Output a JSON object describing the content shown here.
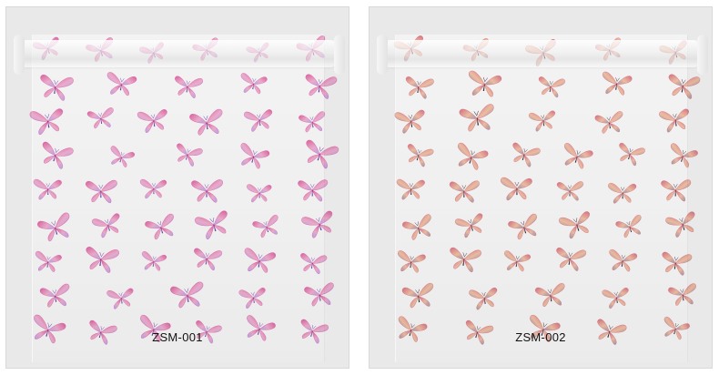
{
  "panels": [
    {
      "label": "ZSM-001",
      "palette": {
        "wing": "#f59cc8",
        "wing_dark": "#e0509a",
        "accent": "#9b6cf0",
        "body": "#6d3fb0"
      },
      "rows": [
        {
          "count": 6,
          "scales": [
            0.8,
            0.85,
            0.75,
            0.8,
            0.7,
            0.9
          ]
        },
        {
          "count": 5,
          "scales": [
            1.0,
            0.9,
            0.85,
            0.8,
            0.95
          ]
        },
        {
          "count": 6,
          "scales": [
            1.0,
            0.8,
            0.9,
            1.0,
            0.85,
            0.8
          ]
        },
        {
          "count": 5,
          "scales": [
            0.95,
            0.75,
            0.8,
            0.9,
            1.0
          ]
        },
        {
          "count": 6,
          "scales": [
            0.85,
            0.95,
            0.8,
            0.95,
            0.75,
            0.9
          ]
        },
        {
          "count": 6,
          "scales": [
            1.0,
            0.85,
            0.9,
            1.0,
            0.8,
            0.95
          ]
        },
        {
          "count": 6,
          "scales": [
            0.8,
            1.0,
            0.75,
            0.85,
            0.95,
            0.8
          ]
        },
        {
          "count": 5,
          "scales": [
            0.9,
            0.8,
            1.0,
            0.8,
            0.9
          ]
        },
        {
          "count": 6,
          "scales": [
            1.0,
            0.85,
            0.95,
            0.8,
            0.9,
            0.85
          ]
        }
      ]
    },
    {
      "label": "ZSM-002",
      "palette": {
        "wing": "#f7b48e",
        "wing_dark": "#d9627a",
        "accent": "#7a5a6a",
        "body": "#3b2a30"
      },
      "rows": [
        {
          "count": 5,
          "scales": [
            0.9,
            0.8,
            0.95,
            0.8,
            0.85
          ]
        },
        {
          "count": 5,
          "scales": [
            0.85,
            1.0,
            0.8,
            0.9,
            0.95
          ]
        },
        {
          "count": 5,
          "scales": [
            0.9,
            1.05,
            0.8,
            0.85,
            0.9
          ]
        },
        {
          "count": 6,
          "scales": [
            0.8,
            0.95,
            0.85,
            0.9,
            0.8,
            0.85
          ]
        },
        {
          "count": 6,
          "scales": [
            0.85,
            0.9,
            0.95,
            0.8,
            0.85,
            0.9
          ]
        },
        {
          "count": 6,
          "scales": [
            0.9,
            0.85,
            0.9,
            0.95,
            0.8,
            0.9
          ]
        },
        {
          "count": 6,
          "scales": [
            0.85,
            0.95,
            0.8,
            0.9,
            0.85,
            0.9
          ]
        },
        {
          "count": 5,
          "scales": [
            0.95,
            0.85,
            0.9,
            0.8,
            0.85
          ]
        },
        {
          "count": 5,
          "scales": [
            0.9,
            0.85,
            0.95,
            0.9,
            0.8
          ]
        }
      ]
    }
  ]
}
